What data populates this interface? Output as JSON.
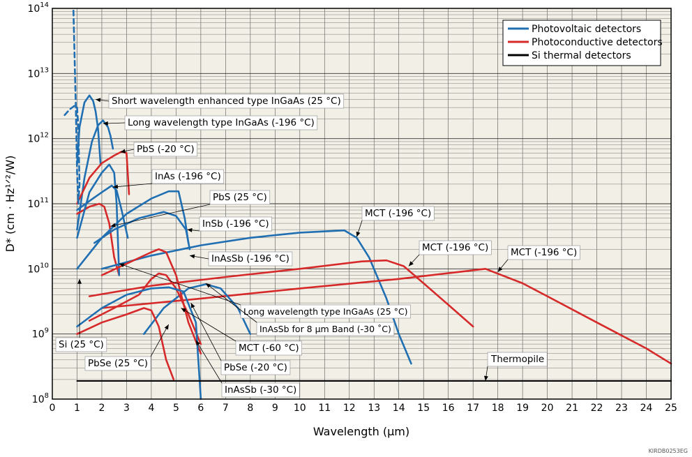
{
  "chart_data": {
    "type": "line",
    "title": "",
    "xlabel": "Wavelength (μm)",
    "ylabel": "D* (cm · Hz¹ᐟ²/W)",
    "yscale": "log",
    "xlim": [
      0,
      25
    ],
    "ylim": [
      100000000.0,
      100000000000000.0
    ],
    "x_ticks": [
      "0",
      "1",
      "2",
      "3",
      "4",
      "5",
      "6",
      "7",
      "8",
      "9",
      "10",
      "11",
      "12",
      "13",
      "14",
      "15",
      "16",
      "17",
      "18",
      "19",
      "20",
      "21",
      "22",
      "23",
      "24",
      "25"
    ],
    "y_ticks": [
      {
        "value": 100000000.0,
        "base": "10",
        "exp": "8"
      },
      {
        "value": 1000000000.0,
        "base": "10",
        "exp": "9"
      },
      {
        "value": 10000000000.0,
        "base": "10",
        "exp": "10"
      },
      {
        "value": 100000000000.0,
        "base": "10",
        "exp": "11"
      },
      {
        "value": 1000000000000.0,
        "base": "10",
        "exp": "12"
      },
      {
        "value": 10000000000000.0,
        "base": "10",
        "exp": "13"
      },
      {
        "value": 100000000000000.0,
        "base": "10",
        "exp": "14"
      }
    ],
    "grid": true,
    "legend_position": "top-right",
    "legend": [
      {
        "label": "Photovoltaic detectors",
        "color": "#1f6fb2"
      },
      {
        "label": "Photoconductive detectors",
        "color": "#d62a2a"
      },
      {
        "label": "Si thermal detectors",
        "color": "#000000"
      }
    ],
    "series": [
      {
        "name": "Short wavelength enhanced type InGaAs (25 °C)",
        "kind": "pv",
        "x": [
          1.0,
          1.1,
          1.3,
          1.5,
          1.65,
          1.75,
          1.85,
          1.95
        ],
        "y": [
          400000000000.0,
          1500000000000.0,
          3600000000000.0,
          4600000000000.0,
          3800000000000.0,
          2600000000000.0,
          1400000000000.0,
          400000000000.0
        ]
      },
      {
        "name": "Long wavelength type InGaAs (-196 °C)",
        "kind": "pv",
        "x": [
          1.0,
          1.3,
          1.6,
          1.85,
          2.05,
          2.25,
          2.35,
          2.45
        ],
        "y": [
          40000000000.0,
          250000000000.0,
          900000000000.0,
          1600000000000.0,
          1900000000000.0,
          1500000000000.0,
          1100000000000.0,
          700000000000.0
        ]
      },
      {
        "name": "PbS (-20 °C)",
        "kind": "pc",
        "x": [
          1.0,
          1.5,
          2.0,
          2.5,
          2.8,
          3.0,
          3.1
        ],
        "y": [
          100000000000.0,
          250000000000.0,
          420000000000.0,
          550000000000.0,
          630000000000.0,
          600000000000.0,
          140000000000.0
        ]
      },
      {
        "name": "InAs (-196 °C)",
        "kind": "pv",
        "x": [
          1.0,
          1.5,
          2.0,
          2.4,
          2.6,
          2.8,
          3.05
        ],
        "y": [
          80000000000.0,
          110000000000.0,
          150000000000.0,
          190000000000.0,
          160000000000.0,
          80000000000.0,
          30000000000.0
        ]
      },
      {
        "name": "PbS (25 °C)",
        "kind": "pc",
        "x": [
          1.0,
          1.5,
          1.9,
          2.1,
          2.3,
          2.5,
          2.7
        ],
        "y": [
          70000000000.0,
          90000000000.0,
          100000000000.0,
          90000000000.0,
          50000000000.0,
          15000000000.0,
          8000000000.0
        ]
      },
      {
        "name": "InSb (-196 °C)",
        "kind": "pv",
        "x": [
          1.0,
          2.0,
          3.0,
          4.0,
          4.7,
          5.1,
          5.35,
          5.5
        ],
        "y": [
          10000000000.0,
          30000000000.0,
          70000000000.0,
          120000000000.0,
          155000000000.0,
          155000000000.0,
          60000000000.0,
          25000000000.0
        ]
      },
      {
        "name": "InAsSb (-196 °C)",
        "kind": "pv",
        "x": [
          1.7,
          2.5,
          3.5,
          4.5,
          5.0,
          5.4,
          5.55
        ],
        "y": [
          25000000000.0,
          40000000000.0,
          60000000000.0,
          75000000000.0,
          65000000000.0,
          40000000000.0,
          20000000000.0
        ]
      },
      {
        "name": "MCT (-196 °C)",
        "kind": "pv",
        "x": [
          2.0,
          4.0,
          6.0,
          8.0,
          10.0,
          11.8,
          12.3,
          12.8,
          13.5,
          14.0,
          14.5
        ],
        "y": [
          10000000000.0,
          16000000000.0,
          23000000000.0,
          30000000000.0,
          36000000000.0,
          39000000000.0,
          30000000000.0,
          15000000000.0,
          3500000000.0,
          1000000000.0,
          350000000.0
        ]
      },
      {
        "name": "MCT (-196 °C)",
        "kind": "pc",
        "x": [
          1.5,
          4.0,
          7.0,
          10.0,
          12.5,
          13.5,
          14.2,
          15.0,
          16.0,
          17.0
        ],
        "y": [
          3800000000.0,
          5500000000.0,
          7500000000.0,
          10000000000.0,
          13000000000.0,
          13500000000.0,
          11000000000.0,
          6000000000.0,
          2800000000.0,
          1300000000.0
        ]
      },
      {
        "name": "MCT (-196 °C)",
        "kind": "pc",
        "x": [
          2.0,
          6.0,
          10.0,
          14.0,
          17.5,
          19.0,
          20.0,
          22.0,
          24.0,
          25.0
        ],
        "y": [
          2500000000.0,
          3500000000.0,
          5000000000.0,
          7000000000.0,
          10000000000.0,
          6000000000.0,
          3800000000.0,
          1500000000.0,
          600000000.0,
          350000000.0
        ]
      },
      {
        "name": "Long wavelength type InGaAs (25 °C)",
        "kind": "pv",
        "x": [
          1.0,
          1.5,
          2.0,
          2.3,
          2.5,
          2.6,
          2.7
        ],
        "y": [
          30000000000.0,
          150000000000.0,
          300000000000.0,
          400000000000.0,
          300000000000.0,
          100000000000.0,
          8000000000.0
        ]
      },
      {
        "name": "InAsSb for 8 μm Band (-30 °C)",
        "kind": "pv",
        "x": [
          3.7,
          4.5,
          5.5,
          6.2,
          6.8,
          7.5,
          8.0
        ],
        "y": [
          1000000000.0,
          2500000000.0,
          5000000000.0,
          5800000000.0,
          5000000000.0,
          2500000000.0,
          1000000000.0
        ]
      },
      {
        "name": "MCT (-60 °C)",
        "kind": "pc",
        "x": [
          1.5,
          2.5,
          3.5,
          4.0,
          4.3,
          4.6,
          5.0,
          5.5,
          6.0
        ],
        "y": [
          1600000000.0,
          2500000000.0,
          4000000000.0,
          7000000000.0,
          8500000000.0,
          8000000000.0,
          5000000000.0,
          2000000000.0,
          700000000.0
        ]
      },
      {
        "name": "PbSe (-20 °C)",
        "kind": "pc",
        "x": [
          2.0,
          3.0,
          4.0,
          4.3,
          4.6,
          5.0,
          5.5,
          6.0
        ],
        "y": [
          8000000000.0,
          12000000000.0,
          18000000000.0,
          20000000000.0,
          18000000000.0,
          8000000000.0,
          1500000000.0,
          500000000.0
        ]
      },
      {
        "name": "PbSe (25 °C)",
        "kind": "pc",
        "x": [
          1.0,
          2.0,
          3.0,
          3.7,
          4.0,
          4.3,
          4.6,
          4.9
        ],
        "y": [
          1000000000.0,
          1500000000.0,
          2000000000.0,
          2500000000.0,
          2300000000.0,
          1300000000.0,
          400000000.0,
          200000000.0
        ]
      },
      {
        "name": "InAsSb (-30 °C)",
        "kind": "pv",
        "x": [
          1.0,
          2.0,
          3.0,
          4.0,
          4.7,
          5.3,
          5.8,
          6.0
        ],
        "y": [
          1300000000.0,
          2500000000.0,
          4000000000.0,
          5000000000.0,
          5200000000.0,
          4500000000.0,
          1500000000.0,
          100000000.0
        ]
      },
      {
        "name": "Thermopile",
        "kind": "thermal",
        "x": [
          1.0,
          25.0
        ],
        "y": [
          190000000.0,
          190000000.0
        ]
      },
      {
        "name": "Si (25 °C)",
        "kind": "pv",
        "dashed": true,
        "x": [
          0.5,
          0.7,
          0.9,
          1.0,
          1.05,
          1.1,
          1.05,
          1.0,
          0.95,
          0.85
        ],
        "y": [
          2300000000000.0,
          2800000000000.0,
          3200000000000.0,
          3000000000000.0,
          1500000000000.0,
          200000000000.0,
          100000000000.0,
          300000000000.0,
          3000000000000.0,
          100000000000000.0
        ]
      }
    ],
    "annotations": [
      {
        "text": "Short wavelength enhanced type InGaAs (25 °C)",
        "target": [
          1.75,
          4000000000000.0
        ],
        "size": "normal"
      },
      {
        "text": "Long wavelength type InGaAs (-196 °C)",
        "target": [
          2.05,
          1700000000000.0
        ],
        "size": "normal"
      },
      {
        "text": "PbS (-20 °C)",
        "target": [
          2.75,
          620000000000.0
        ],
        "size": "normal"
      },
      {
        "text": "InAs (-196 °C)",
        "target": [
          2.45,
          180000000000.0
        ],
        "size": "normal"
      },
      {
        "text": "PbS (25 °C)",
        "target": [
          2.35,
          45000000000.0
        ],
        "size": "normal"
      },
      {
        "text": "InSb (-196 °C)",
        "target": [
          5.45,
          40000000000.0
        ],
        "size": "normal"
      },
      {
        "text": "InAsSb (-196 °C)",
        "target": [
          5.55,
          16000000000.0
        ],
        "size": "normal"
      },
      {
        "text": "MCT (-196 °C)",
        "target": [
          12.3,
          31000000000.0
        ],
        "size": "normal"
      },
      {
        "text": "MCT (-196 °C)",
        "target": [
          14.4,
          11000000000.0
        ],
        "size": "normal"
      },
      {
        "text": "MCT (-196 °C)",
        "target": [
          18.0,
          9000000000.0
        ],
        "size": "normal"
      },
      {
        "text": "Long wavelength type InGaAs (25 °C)",
        "target": [
          2.7,
          12000000000.0
        ],
        "size": "small"
      },
      {
        "text": "InAsSb for 8 μm Band (-30 ˚C)",
        "target": [
          6.2,
          6000000000.0
        ],
        "size": "small"
      },
      {
        "text": "MCT (-60 °C)",
        "target": [
          5.2,
          2500000000.0
        ],
        "size": "normal"
      },
      {
        "text": "PbSe (-20 °C)",
        "target": [
          5.6,
          3000000000.0
        ],
        "size": "normal"
      },
      {
        "text": "PbSe (25 °C)",
        "target": [
          4.7,
          1400000000.0
        ],
        "size": "normal"
      },
      {
        "text": "InAsSb (-30 °C)",
        "target": [
          5.8,
          800000000.0
        ],
        "size": "normal"
      },
      {
        "text": "Thermopile",
        "target": [
          17.5,
          190000000.0
        ],
        "size": "normal"
      },
      {
        "text": "Si (25 °C)",
        "target": [
          1.1,
          7000000000.0
        ],
        "size": "normal"
      }
    ],
    "code_text": "KIRDB0253EG"
  }
}
